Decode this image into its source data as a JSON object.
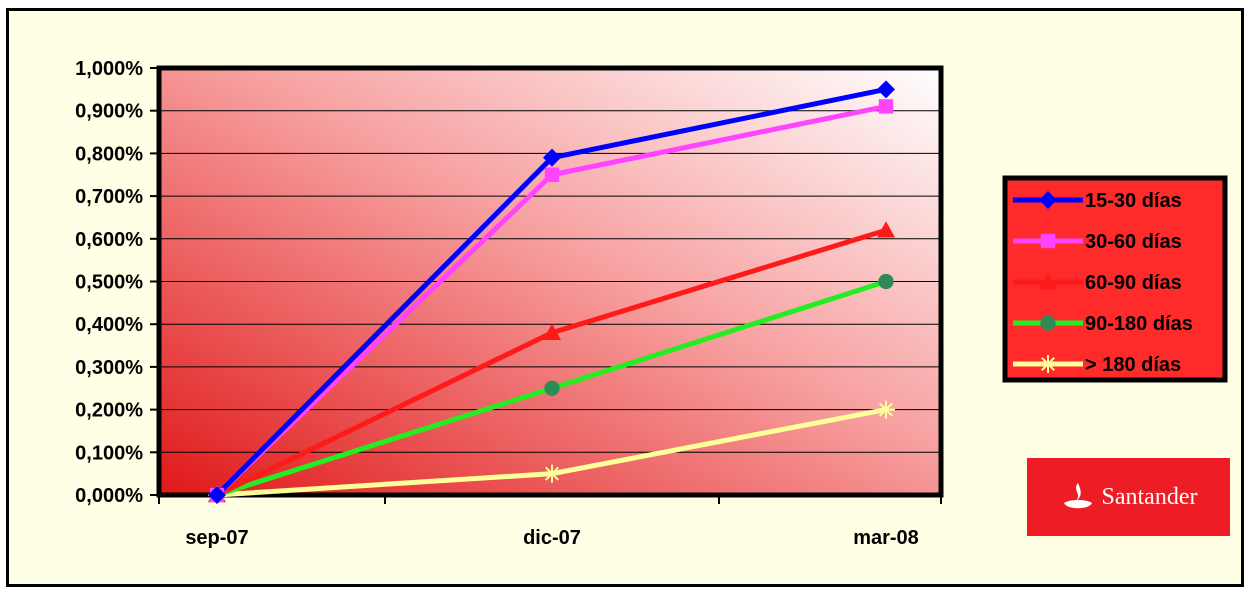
{
  "chart_data": {
    "type": "line",
    "categories": [
      "sep-07",
      "dic-07",
      "mar-08"
    ],
    "ylim": [
      0,
      1.0
    ],
    "yticks": [
      "0,000%",
      "0,100%",
      "0,200%",
      "0,300%",
      "0,400%",
      "0,500%",
      "0,600%",
      "0,700%",
      "0,800%",
      "0,900%",
      "1,000%"
    ],
    "grid": true,
    "legend_position": "right",
    "series": [
      {
        "name": "15-30 días",
        "values": [
          0.0,
          0.79,
          0.95
        ],
        "color": "#0000ff",
        "marker": "diamond"
      },
      {
        "name": "30-60 días",
        "values": [
          0.0,
          0.75,
          0.91
        ],
        "color": "#ff44ff",
        "marker": "square"
      },
      {
        "name": "60-90 días",
        "values": [
          0.0,
          0.38,
          0.62
        ],
        "color": "#ff1a1a",
        "marker": "triangle"
      },
      {
        "name": "90-180 días",
        "values": [
          0.0,
          0.25,
          0.5
        ],
        "color": "#22ee22",
        "marker_color": "#2e8b57",
        "marker": "circle"
      },
      {
        "name": "> 180 días",
        "values": [
          0.0,
          0.05,
          0.2
        ],
        "color": "#ffff99",
        "marker": "star"
      }
    ]
  },
  "logo": {
    "text": "Santander",
    "color": "#ee1c24"
  }
}
